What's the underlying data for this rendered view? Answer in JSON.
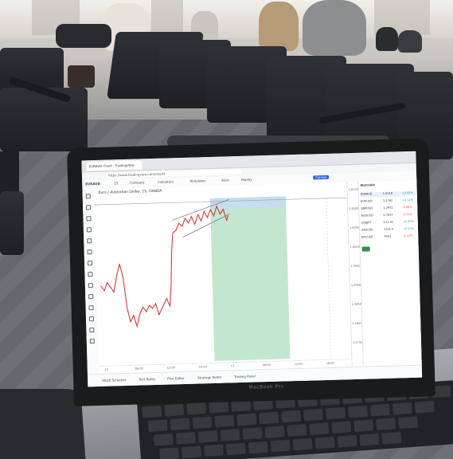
{
  "photo": {
    "setting": "airport-waiting-area",
    "laptop_logo": "MacBook Pro"
  },
  "browser": {
    "tab_title": "EURAUD Chart · TradingView",
    "url": "https://www.tradingview.com/chart/",
    "extra_tab": "TradingView"
  },
  "toolbar": {
    "symbol": "EURAUD",
    "interval": "15",
    "items": [
      "Compare",
      "Indicators",
      "Templates",
      "Alert",
      "Replay"
    ],
    "publish": "Publish"
  },
  "chart": {
    "title": "Euro / Australian Dollar, 15, OANDA",
    "price_labels": [
      "1.6150",
      "1.6100",
      "1.6050",
      "1.6000",
      "1.5950",
      "1.5900",
      "1.5850",
      "1.5800",
      "1.5750"
    ],
    "time_labels": [
      "12",
      "06:00",
      "12:00",
      "18:00",
      "13",
      "06:00",
      "12:00",
      "18:00"
    ],
    "accent_green": "#b8e3c6",
    "accent_blue": "#c7dcf2",
    "line_color": "#d43a3a"
  },
  "watchlist": {
    "header": "Watchlist",
    "rows": [
      {
        "sym": "EURAUD",
        "px": "1.6118",
        "ch": "+0.42%"
      },
      {
        "sym": "EURUSD",
        "px": "1.1342",
        "ch": "+0.11%"
      },
      {
        "sym": "GBPUSD",
        "px": "1.2931",
        "ch": "-0.08%"
      },
      {
        "sym": "AUDUSD",
        "px": "0.7037",
        "ch": "-0.31%"
      },
      {
        "sym": "USDJPY",
        "px": "111.42",
        "ch": "+0.05%"
      },
      {
        "sym": "XAUUSD",
        "px": "1321.5",
        "ch": "+0.22%"
      },
      {
        "sym": "BTCUSD",
        "px": "3901",
        "ch": "-1.12%"
      }
    ]
  },
  "bottom_bar": {
    "items": [
      "Stock Screener",
      "Text Notes",
      "Pine Editor",
      "Strategy Tester",
      "Trading Panel"
    ]
  }
}
